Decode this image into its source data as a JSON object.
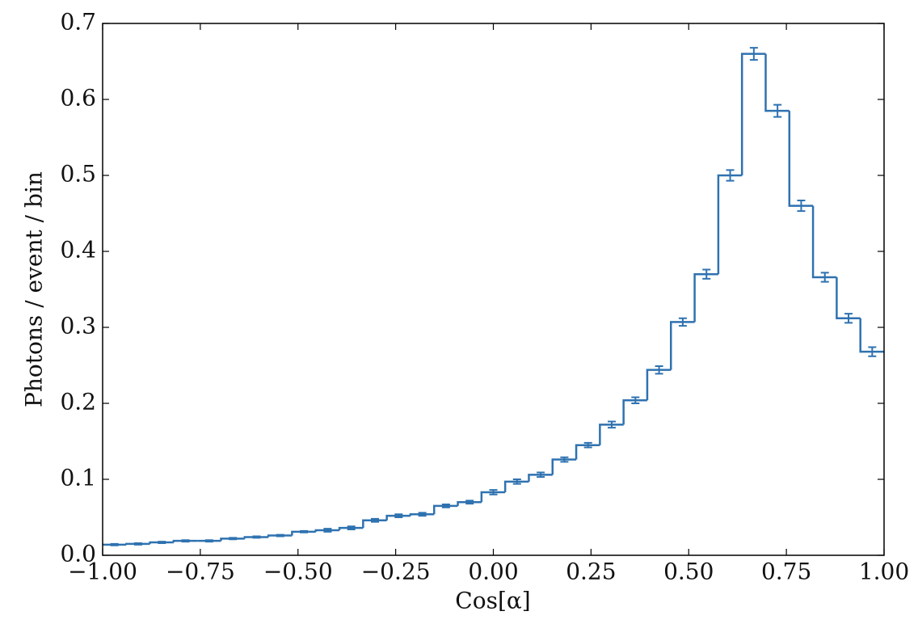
{
  "chart_data": {
    "type": "histogram",
    "x_label": "Cos[α]",
    "y_label": "Photons / event / bin",
    "color": "#2f72b0",
    "bins": [
      -1,
      -0.9394,
      -0.8788,
      -0.8182,
      -0.7576,
      -0.697,
      -0.6364,
      -0.5758,
      -0.5152,
      -0.4545,
      -0.3939,
      -0.3333,
      -0.2727,
      -0.2121,
      -0.1515,
      -0.0909,
      -0.0303,
      0.0303,
      0.0909,
      0.1515,
      0.2121,
      0.2727,
      0.3333,
      0.3939,
      0.4545,
      0.5152,
      0.5758,
      0.6364,
      0.697,
      0.7576,
      0.8182,
      0.8788,
      0.9394,
      1
    ],
    "values": [
      0.014,
      0.015,
      0.017,
      0.019,
      0.019,
      0.022,
      0.024,
      0.026,
      0.031,
      0.033,
      0.036,
      0.046,
      0.052,
      0.054,
      0.065,
      0.07,
      0.083,
      0.097,
      0.106,
      0.126,
      0.145,
      0.172,
      0.204,
      0.244,
      0.307,
      0.37,
      0.5,
      0.66,
      0.585,
      0.46,
      0.366,
      0.312,
      0.268
    ],
    "errors": [
      0.001,
      0.001,
      0.001,
      0.001,
      0.001,
      0.001,
      0.001,
      0.001,
      0.001,
      0.002,
      0.002,
      0.002,
      0.002,
      0.002,
      0.002,
      0.002,
      0.003,
      0.003,
      0.003,
      0.003,
      0.003,
      0.004,
      0.004,
      0.005,
      0.005,
      0.006,
      0.007,
      0.008,
      0.008,
      0.007,
      0.006,
      0.006,
      0.006
    ],
    "xlim": [
      -1,
      1
    ],
    "ylim": [
      0,
      0.7
    ],
    "xticks": [
      {
        "value": -1,
        "label": "−1.00"
      },
      {
        "value": -0.75,
        "label": "−0.75"
      },
      {
        "value": -0.5,
        "label": "−0.50"
      },
      {
        "value": -0.25,
        "label": "−0.25"
      },
      {
        "value": 0,
        "label": "0.00"
      },
      {
        "value": 0.25,
        "label": "0.25"
      },
      {
        "value": 0.5,
        "label": "0.50"
      },
      {
        "value": 0.75,
        "label": "0.75"
      },
      {
        "value": 1,
        "label": "1.00"
      }
    ],
    "yticks": [
      {
        "value": 0,
        "label": "0.0"
      },
      0.1,
      0.2,
      0.3,
      0.4,
      0.5,
      0.6,
      0.7
    ]
  }
}
